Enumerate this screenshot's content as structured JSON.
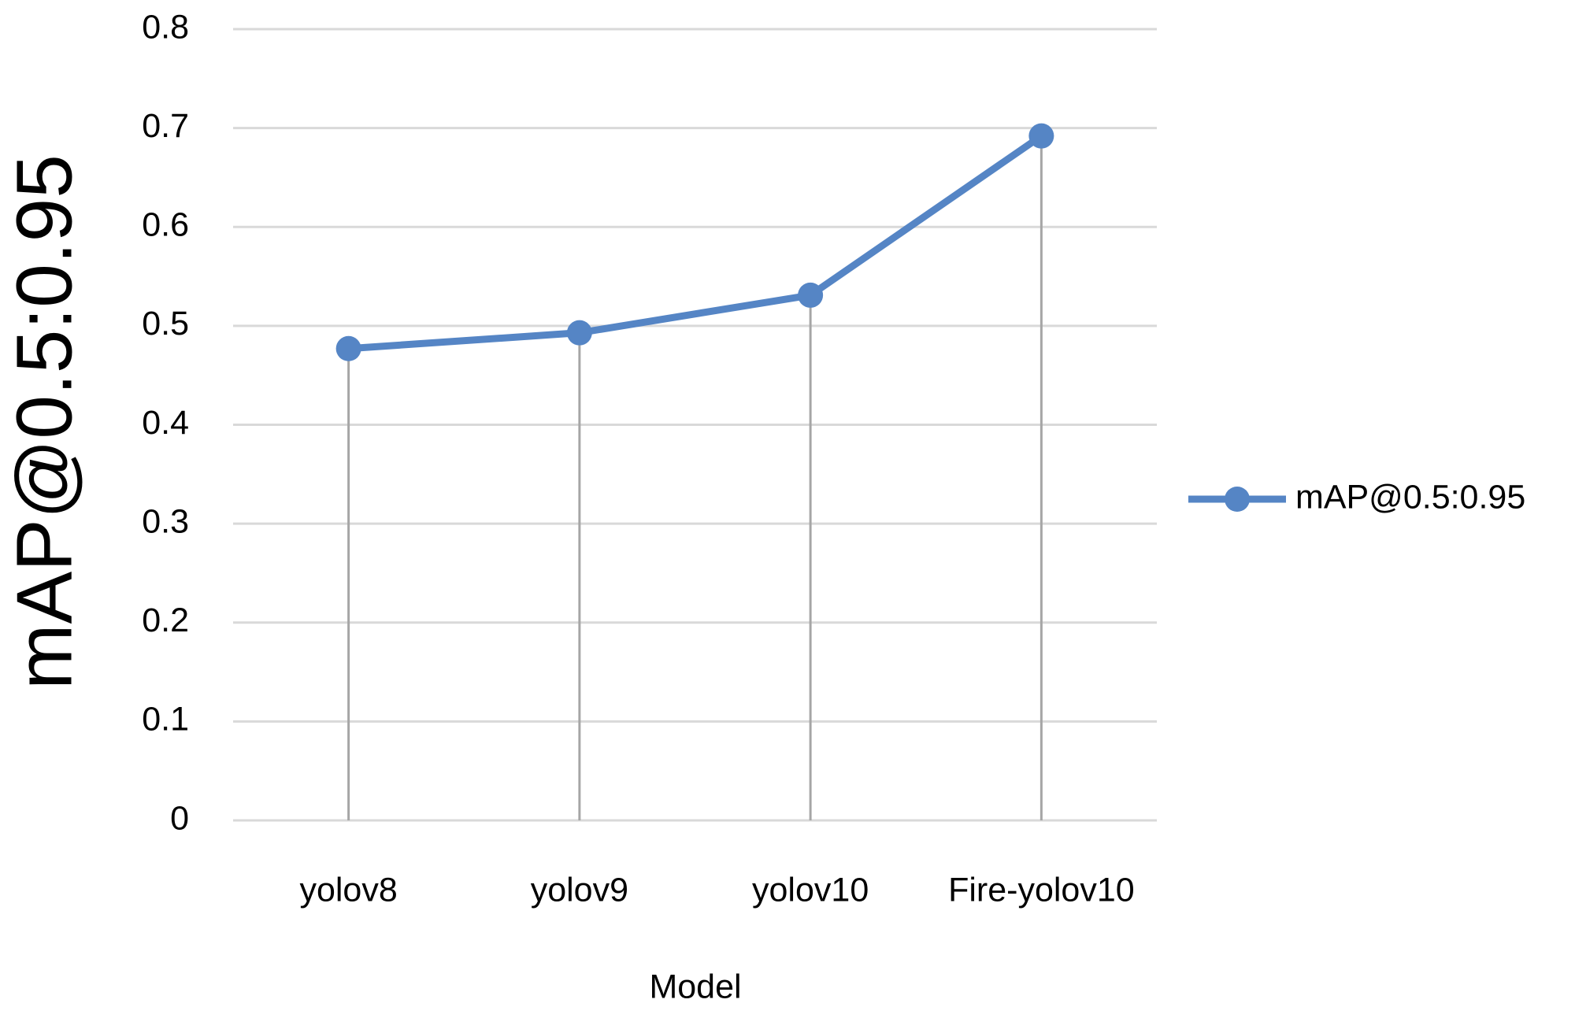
{
  "chart_data": {
    "type": "line",
    "y_label": "mAP@0.5:0.95",
    "x_label": "Model",
    "categories": [
      "yolov8",
      "yolov9",
      "yolov10",
      "Fire-yolov10"
    ],
    "series": [
      {
        "name": "mAP@0.5:0.95",
        "color": "#5585c5",
        "values": [
          0.477,
          0.493,
          0.531,
          0.692
        ]
      }
    ],
    "ylim": [
      0,
      0.8
    ],
    "yticks": [
      0,
      0.1,
      0.2,
      0.3,
      0.4,
      0.5,
      0.6,
      0.7,
      0.8
    ],
    "grid": true,
    "drop_lines": true,
    "legend": "right"
  }
}
